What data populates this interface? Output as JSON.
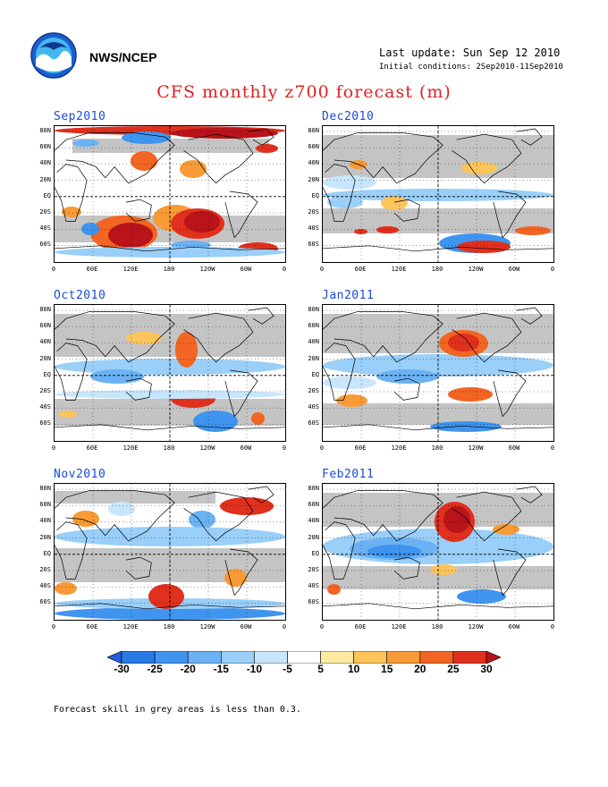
{
  "header": {
    "org": "NWS/NCEP",
    "last_update": "Last update: Sun Sep 12 2010",
    "initial_conditions": "Initial conditions: 2Sep2010-11Sep2010",
    "title": "CFS monthly z700 forecast (m)"
  },
  "logo_icon": "noaa-logo-icon",
  "panels": [
    {
      "label": "Sep2010"
    },
    {
      "label": "Dec2010"
    },
    {
      "label": "Oct2010"
    },
    {
      "label": "Jan2011"
    },
    {
      "label": "Nov2010"
    },
    {
      "label": "Feb2011"
    }
  ],
  "lat_labels": [
    "80N",
    "60N",
    "40N",
    "20N",
    "EQ",
    "20S",
    "40S",
    "60S"
  ],
  "lon_labels": [
    "0",
    "60E",
    "120E",
    "180",
    "120W",
    "60W",
    "0"
  ],
  "colorbar": {
    "ticks": [
      "-30",
      "-25",
      "-20",
      "-15",
      "-10",
      "-5",
      "5",
      "10",
      "15",
      "20",
      "25",
      "30"
    ],
    "colors": [
      "#1e5fd8",
      "#2a7ae6",
      "#3f94ef",
      "#6bb2f4",
      "#99cff8",
      "#c8e6fb",
      "#ffffff",
      "#fde9a0",
      "#fcc45a",
      "#f89a35",
      "#f26522",
      "#e0301e",
      "#b8141a"
    ]
  },
  "footnote": "Forecast skill in grey areas is less than 0.3."
}
